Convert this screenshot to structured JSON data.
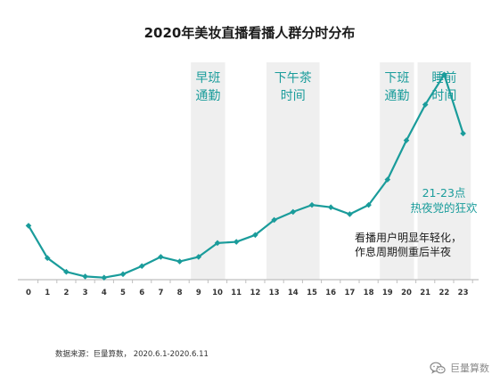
{
  "chart_data": {
    "type": "line",
    "title": "2020年美妆直播看播人群分时分布",
    "categories": [
      "0",
      "1",
      "2",
      "3",
      "4",
      "5",
      "6",
      "7",
      "8",
      "9",
      "10",
      "11",
      "12",
      "13",
      "14",
      "15",
      "16",
      "17",
      "18",
      "19",
      "20",
      "21",
      "22",
      "23"
    ],
    "values": [
      46,
      18,
      6,
      2,
      1,
      4,
      11,
      19,
      15,
      19,
      31,
      32,
      38,
      51,
      58,
      64,
      62,
      56,
      64,
      86,
      120,
      151,
      177,
      126
    ],
    "ylim": [
      0,
      200
    ],
    "line_color": "#1a9c9b",
    "highlight_color": "#efefef",
    "highlight_text_color": "#1a9c9b",
    "highlights": [
      {
        "from": "9",
        "to": "10",
        "label_lines": [
          "早班",
          "通勤"
        ]
      },
      {
        "from": "13",
        "to": "15",
        "label_lines": [
          "下午茶",
          "时间"
        ]
      },
      {
        "from": "19",
        "to": "20",
        "label_lines": [
          "下班",
          "通勤"
        ]
      },
      {
        "from": "21",
        "to": "23",
        "label_lines": [
          "睡前",
          "时间"
        ]
      }
    ],
    "annotations": {
      "teal": [
        "21-23点",
        "热夜党的狂欢"
      ],
      "dark": [
        "看播用户明显年轻化，",
        "作息周期侧重后半夜"
      ]
    }
  },
  "footer": {
    "source": "数据来源：巨量算数， 2020.6.1-2020.6.11",
    "watermark": "巨量算数",
    "watermark_icon": "wechat-icon"
  }
}
